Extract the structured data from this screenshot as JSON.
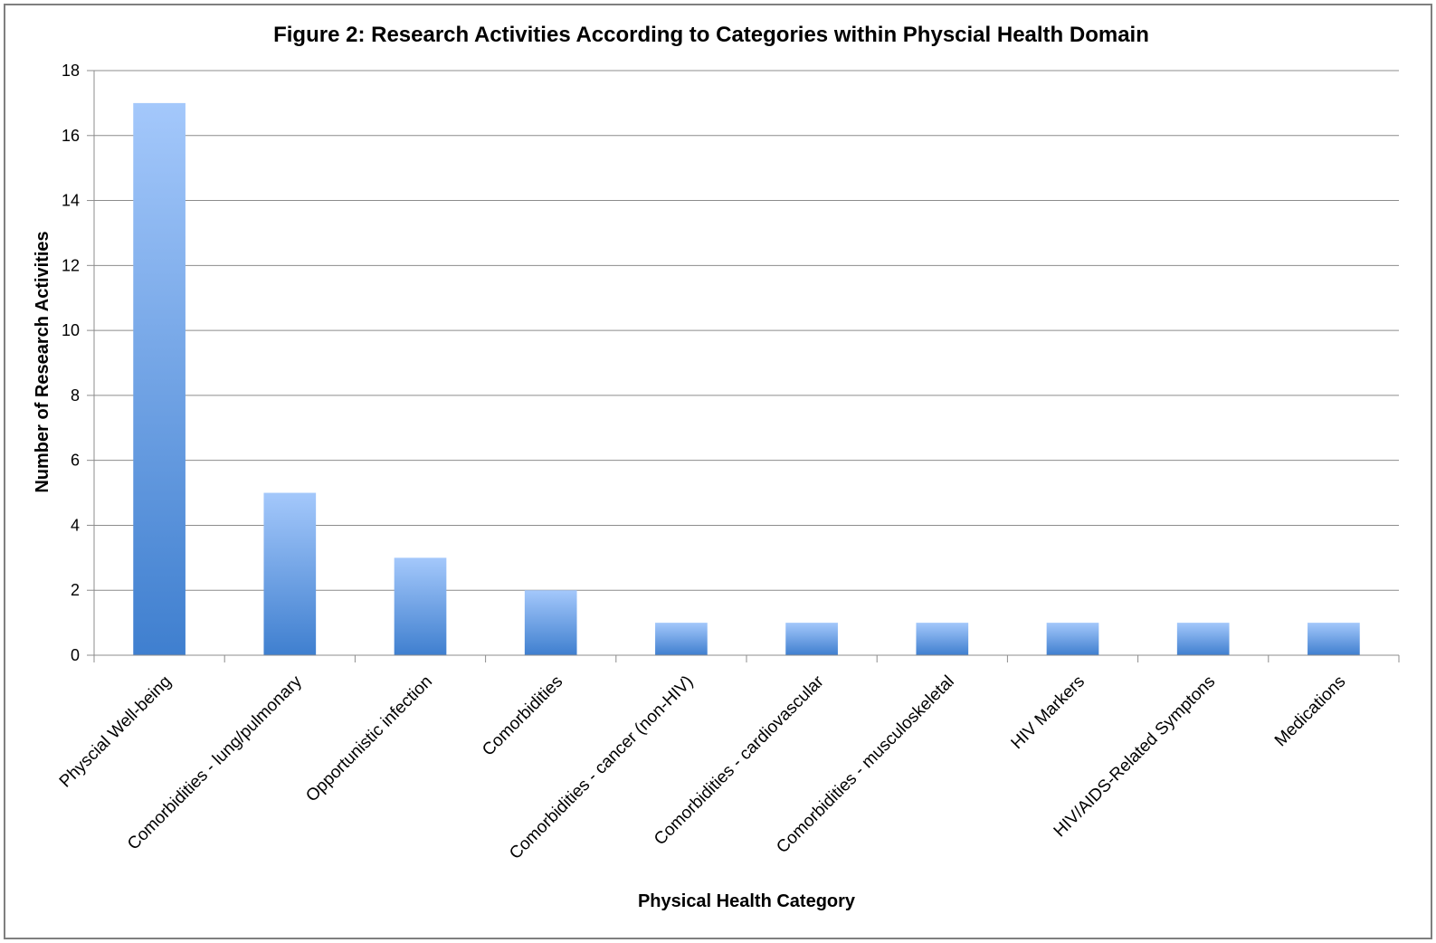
{
  "chart_data": {
    "type": "bar",
    "title": "Figure 2: Research Activities According to Categories within Physcial Health Domain",
    "xlabel": "Physical Health Category",
    "ylabel": "Number of Research Activities",
    "categories": [
      "Physcial Well-being",
      "Comorbidities - lung/pulmonary",
      "Opportunistic infection",
      "Comorbidities",
      "Comorbidities - cancer (non-HIV)",
      "Comorbidities - cardiovascular",
      "Comorbidities - musculoskeletal",
      "HIV Markers",
      "HIV/AIDS-Related Symptons",
      "Medications"
    ],
    "values": [
      17,
      5,
      3,
      2,
      1,
      1,
      1,
      1,
      1,
      1
    ],
    "ylim": [
      0,
      18
    ],
    "yticks": [
      0,
      2,
      4,
      6,
      8,
      10,
      12,
      14,
      16,
      18
    ],
    "grid": true,
    "legend": "none",
    "colors": {
      "bar_top": "#a4c8fb",
      "bar_bottom": "#3f7fcf",
      "gridline": "#8c8c8c",
      "axis": "#8c8c8c",
      "frame": "#7f7f7f"
    }
  }
}
